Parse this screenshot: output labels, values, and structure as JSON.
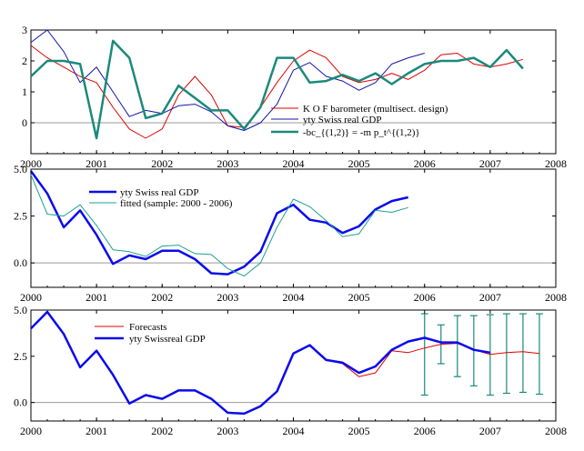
{
  "colors": {
    "red": "#e00000",
    "navy": "#1414a8",
    "teal": "#1a8a7a",
    "blue": "#0a0aee",
    "teal_light": "#20a090",
    "zero_line": "#999999"
  },
  "chart_data": [
    {
      "type": "line",
      "xlim": [
        2000,
        2008
      ],
      "ylim": [
        -1,
        3
      ],
      "xticks": [
        "2000",
        "2001",
        "2002",
        "2003",
        "2004",
        "2005",
        "2006",
        "2007",
        "2008"
      ],
      "yticks": [
        "3",
        "2",
        "1",
        "0"
      ],
      "legend_position": "bottom-right",
      "series": [
        {
          "name": "K O F barometer (multisect. design)",
          "color": "red",
          "x": [
            2000.0,
            2000.25,
            2000.5,
            2000.75,
            2001.0,
            2001.25,
            2001.5,
            2001.75,
            2002.0,
            2002.25,
            2002.5,
            2002.75,
            2003.0,
            2003.25,
            2003.5,
            2003.75,
            2004.0,
            2004.25,
            2004.5,
            2004.75,
            2005.0,
            2005.25,
            2005.5,
            2005.75,
            2006.0,
            2006.25,
            2006.5,
            2006.75,
            2007.0,
            2007.25,
            2007.5
          ],
          "y": [
            2.5,
            2.1,
            1.8,
            1.5,
            1.3,
            0.5,
            -0.2,
            -0.5,
            -0.2,
            0.9,
            1.5,
            0.9,
            -0.1,
            -0.15,
            0.5,
            1.3,
            2.0,
            2.35,
            2.1,
            1.5,
            1.3,
            1.4,
            1.6,
            1.4,
            1.7,
            2.2,
            2.25,
            1.9,
            1.8,
            1.9,
            2.05
          ]
        },
        {
          "name": "yty Swiss real GDP",
          "color": "navy",
          "x": [
            2000.0,
            2000.25,
            2000.5,
            2000.75,
            2001.0,
            2001.25,
            2001.5,
            2001.75,
            2002.0,
            2002.25,
            2002.5,
            2002.75,
            2003.0,
            2003.25,
            2003.5,
            2003.75,
            2004.0,
            2004.25,
            2004.5,
            2004.75,
            2005.0,
            2005.25,
            2005.5,
            2005.75,
            2006.0
          ],
          "y": [
            2.6,
            3.0,
            2.3,
            1.3,
            1.8,
            1.0,
            0.2,
            0.4,
            0.3,
            0.55,
            0.6,
            0.35,
            -0.1,
            -0.25,
            0.0,
            0.6,
            1.7,
            1.95,
            1.5,
            1.35,
            1.05,
            1.3,
            1.9,
            2.1,
            2.25
          ]
        },
        {
          "name": "-bc_{(1,2)} = -m p_t^{(1,2)}",
          "color": "teal",
          "width": 2.5,
          "x": [
            2000.0,
            2000.25,
            2000.5,
            2000.75,
            2001.0,
            2001.25,
            2001.5,
            2001.75,
            2002.0,
            2002.25,
            2002.5,
            2002.75,
            2003.0,
            2003.25,
            2003.5,
            2003.75,
            2004.0,
            2004.25,
            2004.5,
            2004.75,
            2005.0,
            2005.25,
            2005.5,
            2005.75,
            2006.0,
            2006.25,
            2006.5,
            2006.75,
            2007.0,
            2007.25,
            2007.5
          ],
          "y": [
            1.5,
            2.0,
            2.0,
            1.9,
            -0.5,
            2.65,
            2.1,
            0.15,
            0.3,
            1.2,
            0.8,
            0.4,
            0.4,
            -0.2,
            0.5,
            2.1,
            2.1,
            1.3,
            1.35,
            1.55,
            1.35,
            1.6,
            1.25,
            1.6,
            1.9,
            2.0,
            2.0,
            2.1,
            1.8,
            2.35,
            1.75
          ]
        }
      ]
    },
    {
      "type": "line",
      "xlim": [
        2000,
        2008
      ],
      "ylim": [
        -1.3,
        5.0
      ],
      "xticks": [
        "2000",
        "2001",
        "2002",
        "2003",
        "2004",
        "2005",
        "2006",
        "2007",
        "2008"
      ],
      "yticks": [
        "5.0",
        "2.5",
        "0.0"
      ],
      "legend_position": "top-left",
      "series": [
        {
          "name": "yty Swiss real GDP",
          "color": "blue",
          "width": 2.5,
          "x": [
            2000.0,
            2000.25,
            2000.5,
            2000.75,
            2001.0,
            2001.25,
            2001.5,
            2001.75,
            2002.0,
            2002.25,
            2002.5,
            2002.75,
            2003.0,
            2003.25,
            2003.5,
            2003.75,
            2004.0,
            2004.25,
            2004.5,
            2004.75,
            2005.0,
            2005.25,
            2005.5,
            2005.75,
            2006.0
          ],
          "y": [
            4.9,
            3.7,
            1.9,
            2.8,
            1.5,
            -0.05,
            0.4,
            0.2,
            0.65,
            0.65,
            0.2,
            -0.55,
            -0.6,
            -0.2,
            0.6,
            2.65,
            3.1,
            2.3,
            2.15,
            1.6,
            1.95,
            2.85,
            3.3,
            3.5,
            null
          ]
        },
        {
          "name": "fitted (sample: 2000 - 2006)",
          "color": "teal_light",
          "x": [
            2000.0,
            2000.25,
            2000.5,
            2000.75,
            2001.0,
            2001.25,
            2001.5,
            2001.75,
            2002.0,
            2002.25,
            2002.5,
            2002.75,
            2003.0,
            2003.25,
            2003.5,
            2003.75,
            2004.0,
            2004.25,
            2004.5,
            2004.75,
            2005.0,
            2005.25,
            2005.5,
            2005.75,
            2006.0
          ],
          "y": [
            4.7,
            2.6,
            2.5,
            3.1,
            2.0,
            0.7,
            0.6,
            0.35,
            0.9,
            0.95,
            0.5,
            0.45,
            -0.3,
            -0.7,
            0.0,
            1.9,
            3.4,
            3.0,
            2.25,
            1.4,
            1.55,
            2.8,
            2.7,
            2.95,
            null
          ]
        }
      ]
    },
    {
      "type": "line",
      "xlim": [
        2000,
        2008
      ],
      "ylim": [
        -1.0,
        5.0
      ],
      "xticks": [
        "2000",
        "2001",
        "2002",
        "2003",
        "2004",
        "2005",
        "2006",
        "2007",
        "2008"
      ],
      "yticks": [
        "5.0",
        "2.5",
        "0.0"
      ],
      "legend_position": "top-left",
      "series": [
        {
          "name": "Forecasts",
          "color": "red",
          "x": [
            2004.5,
            2004.75,
            2005.0,
            2005.25,
            2005.5,
            2005.75,
            2006.0,
            2006.25,
            2006.5,
            2006.75,
            2007.0,
            2007.25,
            2007.5,
            2007.75
          ],
          "y": [
            2.3,
            2.1,
            1.4,
            1.6,
            2.8,
            2.7,
            2.95,
            3.15,
            3.2,
            2.85,
            2.6,
            2.7,
            2.75,
            2.65
          ]
        },
        {
          "name": "yty Swissreal GDP",
          "color": "blue",
          "width": 2.5,
          "x": [
            2000.0,
            2000.25,
            2000.5,
            2000.75,
            2001.0,
            2001.25,
            2001.5,
            2001.75,
            2002.0,
            2002.25,
            2002.5,
            2002.75,
            2003.0,
            2003.25,
            2003.5,
            2003.75,
            2004.0,
            2004.25,
            2004.5,
            2004.75,
            2005.0,
            2005.25,
            2005.5,
            2005.75,
            2006.0,
            2006.25,
            2006.5,
            2006.75,
            2007.0
          ],
          "y": [
            4.0,
            4.9,
            3.7,
            1.9,
            2.8,
            1.5,
            -0.05,
            0.4,
            0.2,
            0.65,
            0.65,
            0.2,
            -0.55,
            -0.6,
            -0.2,
            0.6,
            2.65,
            3.1,
            2.3,
            2.15,
            1.6,
            1.95,
            2.85,
            3.3,
            3.5,
            3.25,
            3.25,
            2.85,
            2.7
          ]
        }
      ],
      "error_bars": {
        "color": "teal",
        "x": [
          2006.0,
          2006.25,
          2006.5,
          2006.75,
          2007.0,
          2007.25,
          2007.5,
          2007.75
        ],
        "lo": [
          0.4,
          2.1,
          1.4,
          0.9,
          0.4,
          0.5,
          0.55,
          0.45
        ],
        "hi": [
          4.8,
          4.2,
          4.7,
          4.7,
          4.75,
          4.8,
          4.8,
          4.8
        ]
      }
    }
  ]
}
